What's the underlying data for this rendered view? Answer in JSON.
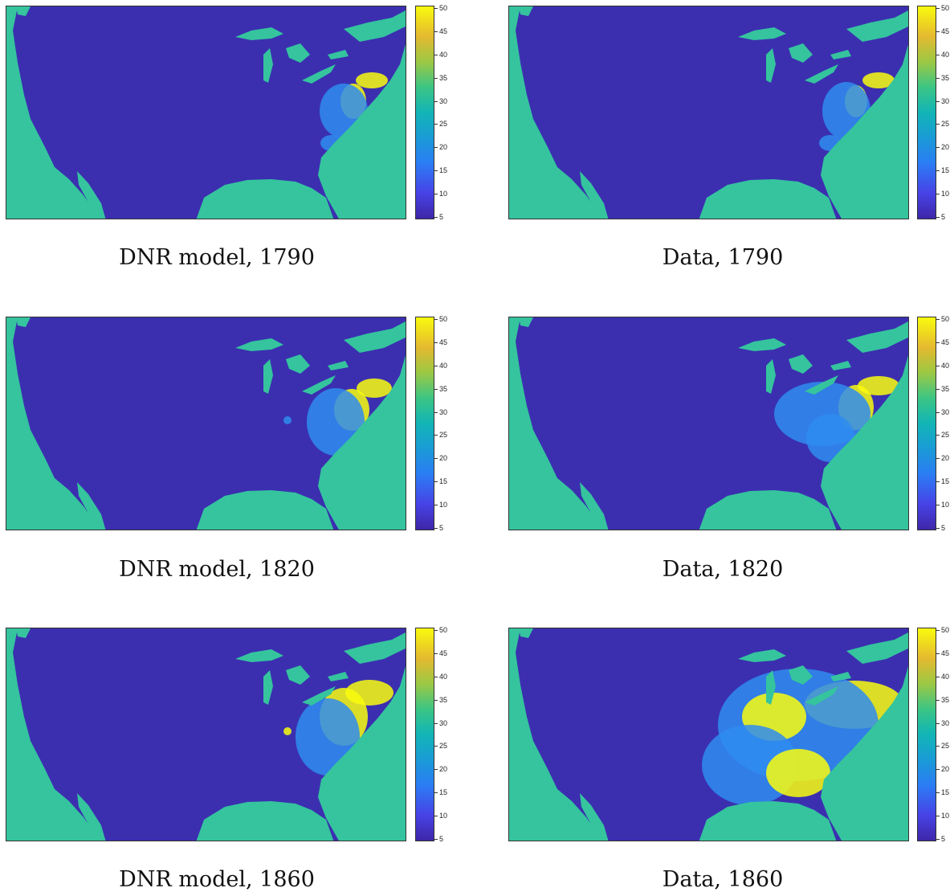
{
  "colorbar": {
    "ticks": [
      "50",
      "45",
      "40",
      "35",
      "30",
      "25",
      "20",
      "15",
      "10",
      "5"
    ],
    "range": [
      5,
      50
    ]
  },
  "colors": {
    "land": "#3b2fb0",
    "water": "#35c49e",
    "high": "#f9fb0e",
    "mid": "#2f8cf0"
  },
  "panels": [
    {
      "caption": "DNR model, 1790"
    },
    {
      "caption": "Data, 1790"
    },
    {
      "caption": "DNR model, 1820"
    },
    {
      "caption": "Data, 1820"
    },
    {
      "caption": "DNR model, 1860"
    },
    {
      "caption": "Data, 1860"
    }
  ]
}
